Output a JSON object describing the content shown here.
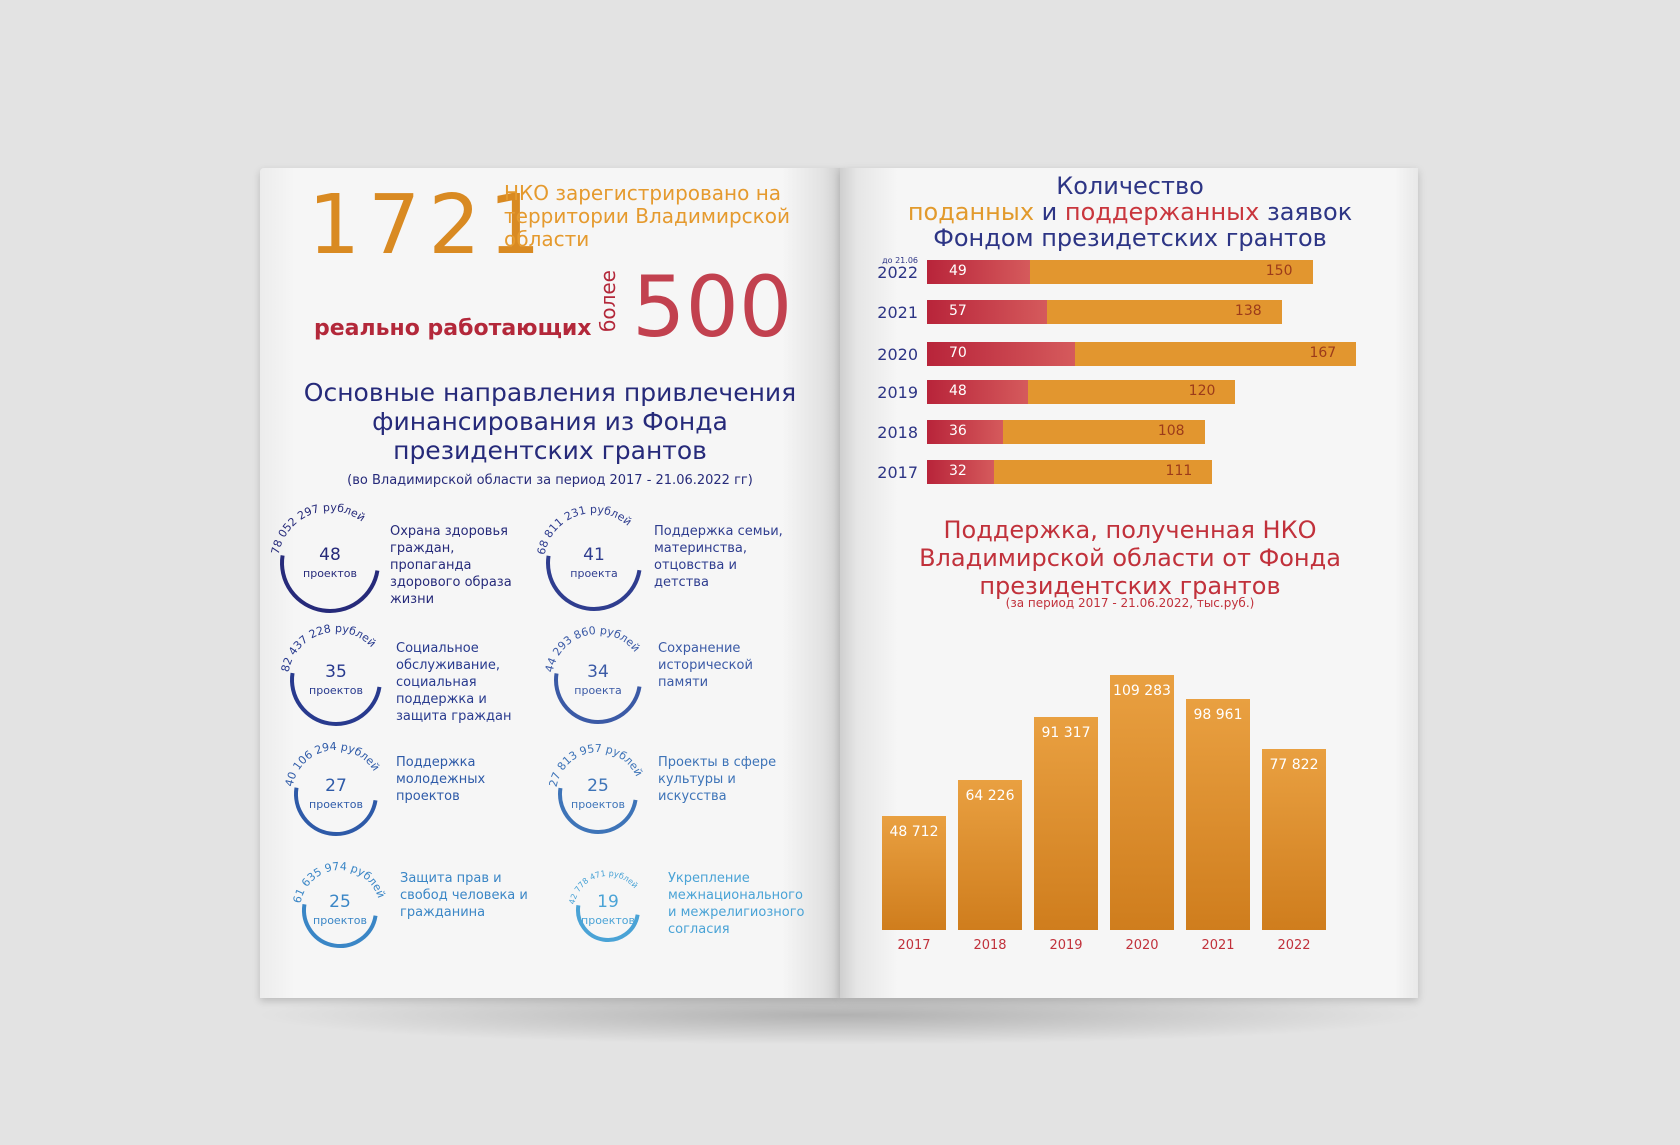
{
  "left_page": {
    "nko_count": "1721",
    "nko_text": "НКО зарегистрировано на территории Владимирской области",
    "working_label": "реально работающих",
    "more_label": "более",
    "working_count": "500",
    "directions_title": "Основные направления привлечения финансирования из Фонда президентских грантов",
    "directions_subtitle": "(во Владимирской области за период 2017 - 21.06.2022 гг)",
    "directions": [
      {
        "amount": "78 052 297 рублей",
        "count": "48",
        "unit": "проектов",
        "desc": "Охрана здоровья граждан, пропаганда здорового образа жизни",
        "color": "#262a7a"
      },
      {
        "amount": "68 811 231 рублей",
        "count": "41",
        "unit": "проекта",
        "desc": "Поддержка семьи, материнства, отцовства и детства",
        "color": "#2f3d8f"
      },
      {
        "amount": "82 437 228 рублей",
        "count": "35",
        "unit": "проектов",
        "desc": "Социальное обслуживание, социальная поддержка и защита граждан",
        "color": "#283a8e"
      },
      {
        "amount": "44 293 860 рублей",
        "count": "34",
        "unit": "проекта",
        "desc": "Сохранение исторической памяти",
        "color": "#3b5aa6"
      },
      {
        "amount": "40 106 294 рублей",
        "count": "27",
        "unit": "проектов",
        "desc": "Поддержка молодежных проектов",
        "color": "#2e5aa8"
      },
      {
        "amount": "27 813 957 рублей",
        "count": "25",
        "unit": "проектов",
        "desc": "Проекты в сфере культуры и искусства",
        "color": "#3e74b8"
      },
      {
        "amount": "61 635 974 рублей",
        "count": "25",
        "unit": "проектов",
        "desc": "Защита прав и свобод человека и гражданина",
        "color": "#3a86c6"
      },
      {
        "amount": "42 778 471 рублей",
        "count": "19",
        "unit": "проектов",
        "desc": "Укрепление межнационального и межрелигиозного согласия",
        "color": "#4aa3d6"
      }
    ]
  },
  "right_page": {
    "title_line1": "Количество",
    "title_part_submitted": "поданных",
    "title_part_and": " и ",
    "title_part_supported": "поддержанных",
    "title_part_apps": " заявок",
    "title_line3": "Фондом президетских грантов",
    "support_title": "Поддержка, полученная НКО Владимирской области от Фонда президентских грантов",
    "support_subtitle": "(за период 2017 - 21.06.2022, тыс.руб.)"
  },
  "chart_data": [
    {
      "type": "bar",
      "orientation": "horizontal",
      "title": "Количество поданных и поддержанных заявок Фондом президетских грантов",
      "categories": [
        "2022",
        "2021",
        "2020",
        "2019",
        "2018",
        "2017"
      ],
      "category_notes": [
        "до 21.06",
        "",
        "",
        "",
        "",
        ""
      ],
      "series": [
        {
          "name": "поддержанных",
          "values": [
            49,
            57,
            70,
            48,
            36,
            32
          ],
          "color": "#c1313b"
        },
        {
          "name": "поданных",
          "values": [
            150,
            138,
            167,
            120,
            108,
            111
          ],
          "color": "#e2962f"
        }
      ],
      "grid": false
    },
    {
      "type": "bar",
      "title": "Поддержка, полученная НКО Владимирской области от Фонда президентских грантов",
      "subtitle": "(за период 2017 - 21.06.2022, тыс.руб.)",
      "categories": [
        "2017",
        "2018",
        "2019",
        "2020",
        "2021",
        "2022"
      ],
      "values": [
        48712,
        64226,
        91317,
        109283,
        98961,
        77822
      ],
      "value_labels": [
        "48 712",
        "64 226",
        "91 317",
        "109 283",
        "98 961",
        "77 822"
      ],
      "ylim": [
        0,
        115000
      ],
      "grid": false,
      "color": "#e29a2c"
    }
  ]
}
